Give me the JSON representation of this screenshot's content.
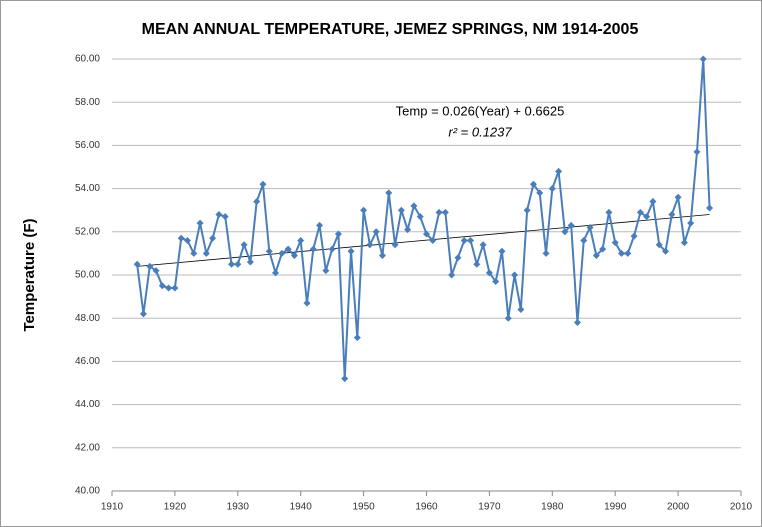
{
  "chart_data": {
    "type": "line",
    "title": "MEAN ANNUAL TEMPERATURE, JEMEZ SPRINGS, NM  1914-2005",
    "y_label": "Temperature (F)",
    "annotations": [
      "Temp = 0.026(Year) + 0.6625",
      "r² = 0.1237"
    ],
    "x": [
      1914,
      1915,
      1916,
      1917,
      1918,
      1919,
      1920,
      1921,
      1922,
      1923,
      1924,
      1925,
      1926,
      1927,
      1928,
      1929,
      1930,
      1931,
      1932,
      1933,
      1934,
      1935,
      1936,
      1937,
      1938,
      1939,
      1940,
      1941,
      1942,
      1943,
      1944,
      1945,
      1946,
      1947,
      1948,
      1949,
      1950,
      1951,
      1952,
      1953,
      1954,
      1955,
      1956,
      1957,
      1958,
      1959,
      1960,
      1961,
      1962,
      1963,
      1964,
      1965,
      1966,
      1967,
      1968,
      1969,
      1970,
      1971,
      1972,
      1973,
      1974,
      1975,
      1976,
      1977,
      1978,
      1979,
      1980,
      1981,
      1982,
      1983,
      1984,
      1985,
      1986,
      1987,
      1988,
      1989,
      1990,
      1991,
      1992,
      1993,
      1994,
      1995,
      1996,
      1997,
      1998,
      1999,
      2000,
      2001,
      2002,
      2003,
      2004,
      2005
    ],
    "series": [
      {
        "color": "#4a7ebb",
        "values": [
          50.5,
          48.2,
          50.4,
          50.2,
          49.5,
          49.4,
          49.4,
          51.7,
          51.6,
          51.0,
          52.4,
          51.0,
          51.7,
          52.8,
          52.7,
          50.5,
          50.5,
          51.4,
          50.6,
          53.4,
          54.2,
          51.1,
          50.1,
          51.0,
          51.2,
          50.9,
          51.6,
          48.7,
          51.2,
          52.3,
          50.2,
          51.2,
          51.9,
          45.2,
          51.1,
          47.1,
          53.0,
          51.4,
          52.0,
          50.9,
          53.8,
          51.4,
          53.0,
          52.1,
          53.2,
          52.7,
          51.9,
          51.6,
          52.9,
          52.9,
          50.0,
          50.8,
          51.6,
          51.6,
          50.5,
          51.4,
          50.1,
          49.7,
          51.1,
          48.0,
          50.0,
          48.4,
          53.0,
          54.2,
          53.8,
          51.0,
          54.0,
          54.8,
          52.0,
          52.3,
          47.8,
          51.6,
          52.2,
          50.9,
          51.2,
          52.9,
          51.5,
          51.0,
          51.0,
          51.8,
          52.9,
          52.7,
          53.4,
          51.4,
          51.1,
          52.8,
          53.6,
          51.5,
          52.4,
          55.7,
          60.0,
          53.1
        ]
      }
    ],
    "trendline": {
      "color": "#000000",
      "x": [
        1914,
        2005
      ],
      "values": [
        50.4,
        52.8
      ]
    },
    "xlim": [
      1910,
      2010
    ],
    "xticks": [
      1910,
      1920,
      1930,
      1940,
      1950,
      1960,
      1970,
      1980,
      1990,
      2000,
      2010
    ],
    "ylim": [
      40,
      60
    ],
    "yticks": [
      {
        "value": 40,
        "label": "40.00"
      },
      {
        "value": 42,
        "label": "42.00"
      },
      {
        "value": 44,
        "label": "44.00"
      },
      {
        "value": 46,
        "label": "46.00"
      },
      {
        "value": 48,
        "label": "48.00"
      },
      {
        "value": 50,
        "label": "50.00"
      },
      {
        "value": 52,
        "label": "52.00"
      },
      {
        "value": 54,
        "label": "54.00"
      },
      {
        "value": 56,
        "label": "56.00"
      },
      {
        "value": 58,
        "label": "58.00"
      },
      {
        "value": 60,
        "label": "60.00"
      }
    ],
    "grid": true
  }
}
